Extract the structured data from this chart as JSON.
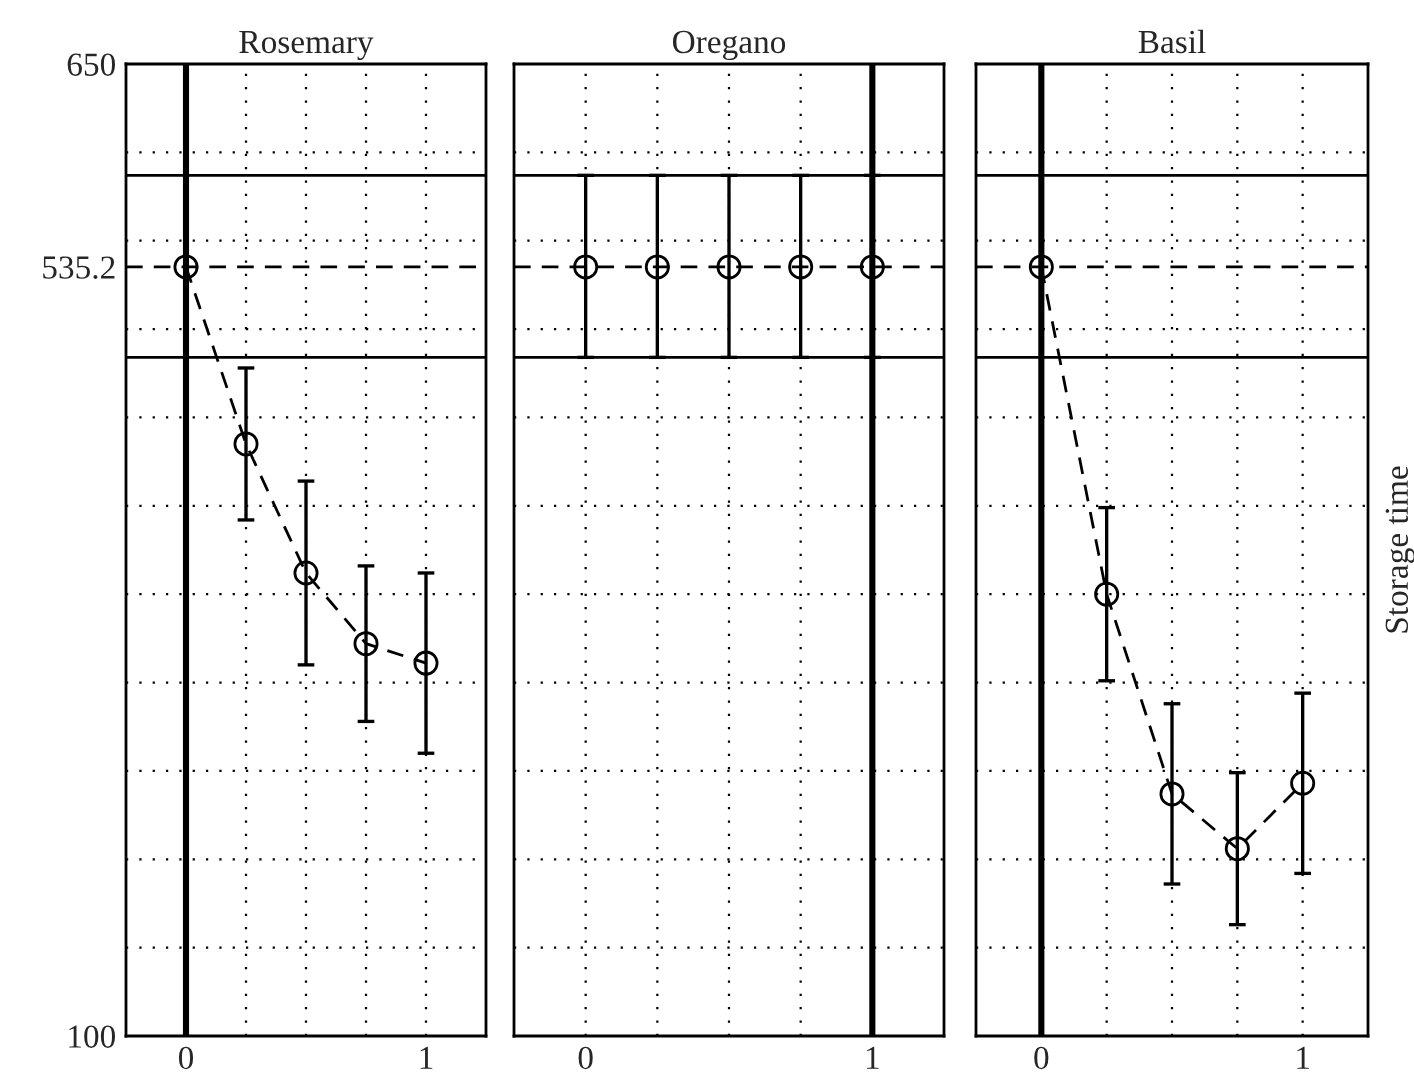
{
  "chart_data": [
    {
      "type": "line",
      "title": "Rosemary",
      "x": [
        0,
        0.25,
        0.5,
        0.75,
        1
      ],
      "series": [
        {
          "color": "#000000",
          "values": [
            535.2,
            435,
            362,
            322,
            311
          ],
          "errors": [
            null,
            43,
            52,
            44,
            51
          ]
        }
      ],
      "marker": "circle",
      "line_style": "dashed",
      "grid": true,
      "xlim": [
        -0.25,
        1.25
      ],
      "xticks": [
        0,
        {
          "value": 0.25,
          "label": null
        },
        {
          "value": 0.5,
          "label": null
        },
        {
          "value": 0.75,
          "label": null
        },
        1
      ],
      "ylim": [
        100,
        650
      ],
      "yticks": [
        100,
        {
          "value": 150,
          "label": null
        },
        {
          "value": 200,
          "label": null
        },
        {
          "value": 250,
          "label": null
        },
        {
          "value": 300,
          "label": null
        },
        {
          "value": 350,
          "label": null
        },
        {
          "value": 400,
          "label": null
        },
        {
          "value": 450,
          "label": null
        },
        {
          "value": 500,
          "label": null
        },
        535.2,
        {
          "value": 550,
          "label": null
        },
        {
          "value": 600,
          "label": null
        },
        650
      ],
      "ref_lines": [
        {
          "axis": "y",
          "value": 587,
          "color": "#000000",
          "line_style": "solid"
        },
        {
          "axis": "y",
          "value": 484,
          "color": "#000000",
          "line_style": "solid"
        },
        {
          "axis": "y",
          "value": 535.2,
          "color": "#000000",
          "line_style": "dashed"
        },
        {
          "axis": "x",
          "value": 0,
          "color": "#000000",
          "line_style": "solid"
        }
      ]
    },
    {
      "type": "line",
      "title": "Oregano",
      "x": [
        0,
        0.25,
        0.5,
        0.75,
        1
      ],
      "series": [
        {
          "type": "scatter",
          "color": "#000000",
          "values": [
            535.2,
            535.2,
            535.2,
            535.2,
            535.2
          ],
          "errors": [
            [
              484,
              587
            ],
            [
              484,
              587
            ],
            [
              484,
              587
            ],
            [
              484,
              587
            ],
            [
              484,
              587
            ]
          ]
        }
      ],
      "marker": "circle",
      "grid": true,
      "tick_labels": "x",
      "xlim": [
        -0.25,
        1.25
      ],
      "xticks": [
        0,
        {
          "value": 0.25,
          "label": null
        },
        {
          "value": 0.5,
          "label": null
        },
        {
          "value": 0.75,
          "label": null
        },
        1
      ],
      "ylim": [
        100,
        650
      ],
      "yticks": [
        100,
        {
          "value": 150,
          "label": null
        },
        {
          "value": 200,
          "label": null
        },
        {
          "value": 250,
          "label": null
        },
        {
          "value": 300,
          "label": null
        },
        {
          "value": 350,
          "label": null
        },
        {
          "value": 400,
          "label": null
        },
        {
          "value": 450,
          "label": null
        },
        {
          "value": 500,
          "label": null
        },
        535.2,
        {
          "value": 550,
          "label": null
        },
        {
          "value": 600,
          "label": null
        },
        650
      ],
      "ref_lines": [
        {
          "axis": "y",
          "value": 587,
          "color": "#000000",
          "line_style": "solid"
        },
        {
          "axis": "y",
          "value": 484,
          "color": "#000000",
          "line_style": "solid"
        },
        {
          "axis": "y",
          "value": 535.2,
          "color": "#000000",
          "line_style": "dashed"
        },
        {
          "axis": "x",
          "value": 1,
          "color": "#000000",
          "line_style": "solid"
        }
      ]
    },
    {
      "type": "line",
      "title": "Basil",
      "ylabel": "Storage time",
      "x": [
        0,
        0.25,
        0.5,
        0.75,
        1
      ],
      "series": [
        {
          "color": "#000000",
          "values": [
            535.2,
            350,
            237,
            206,
            243
          ],
          "errors": [
            null,
            49,
            51,
            43,
            51
          ]
        }
      ],
      "marker": "circle",
      "line_style": "dashed",
      "grid": true,
      "tick_labels": "x",
      "xlim": [
        -0.25,
        1.25
      ],
      "xticks": [
        0,
        {
          "value": 0.25,
          "label": null
        },
        {
          "value": 0.5,
          "label": null
        },
        {
          "value": 0.75,
          "label": null
        },
        1
      ],
      "ylim": [
        100,
        650
      ],
      "yticks": [
        100,
        {
          "value": 150,
          "label": null
        },
        {
          "value": 200,
          "label": null
        },
        {
          "value": 250,
          "label": null
        },
        {
          "value": 300,
          "label": null
        },
        {
          "value": 350,
          "label": null
        },
        {
          "value": 400,
          "label": null
        },
        {
          "value": 450,
          "label": null
        },
        {
          "value": 500,
          "label": null
        },
        535.2,
        {
          "value": 550,
          "label": null
        },
        {
          "value": 600,
          "label": null
        },
        650
      ],
      "ref_lines": [
        {
          "axis": "y",
          "value": 587,
          "color": "#000000",
          "line_style": "solid"
        },
        {
          "axis": "y",
          "value": 484,
          "color": "#000000",
          "line_style": "solid"
        },
        {
          "axis": "y",
          "value": 535.2,
          "color": "#000000",
          "line_style": "dashed"
        },
        {
          "axis": "x",
          "value": 0,
          "color": "#000000",
          "line_style": "solid"
        }
      ]
    }
  ]
}
